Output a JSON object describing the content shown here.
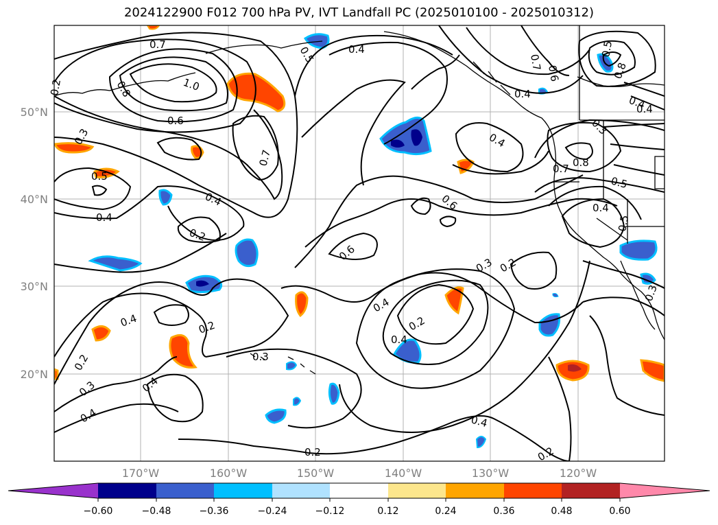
{
  "title": "2024122900 F012 700 hPa PV, IVT Landfall PC (2025010100 - 2025010312)",
  "colors": {
    "background": "#ffffff",
    "contour": "#000000",
    "grid": "#b0b0b0",
    "tick_text": "#7f7f7f"
  },
  "map": {
    "lat_labels": [
      "50°N",
      "40°N",
      "30°N",
      "20°N"
    ],
    "lon_labels": [
      "170°W",
      "160°W",
      "150°W",
      "140°W",
      "130°W",
      "120°W"
    ],
    "contour_labels": [
      "0.7",
      "0.8",
      "1.0",
      "0.6",
      "0.5",
      "0.4",
      "0.3",
      "0.5",
      "0.4",
      "0.4",
      "0.2",
      "0.7",
      "0.4",
      "0.6",
      "0.6",
      "0.3",
      "0.2",
      "0.4",
      "0.2",
      "0.2",
      "0.4",
      "0.3",
      "0.2",
      "0.3",
      "0.4",
      "0.4",
      "0.2",
      "0.2",
      "0.7",
      "0.8",
      "0.5",
      "0.4",
      "0.4",
      "0.4",
      "0.4",
      "0.7",
      "0.6",
      "0.5",
      "0.8",
      "0.4",
      "0.5",
      "0.3",
      "0.3",
      "0.2",
      "0.4"
    ]
  },
  "colorbar": {
    "colors": [
      "#9932cc",
      "#00008b",
      "#3a5fcd",
      "#00bfff",
      "#b0e2ff",
      "#ffffff",
      "#fce68c",
      "#ffa500",
      "#ff4500",
      "#b22222",
      "#ff88aa"
    ],
    "tick_labels": [
      "−0.60",
      "−0.48",
      "−0.36",
      "−0.24",
      "−0.12",
      "0.12",
      "0.24",
      "0.36",
      "0.48",
      "0.60"
    ]
  }
}
